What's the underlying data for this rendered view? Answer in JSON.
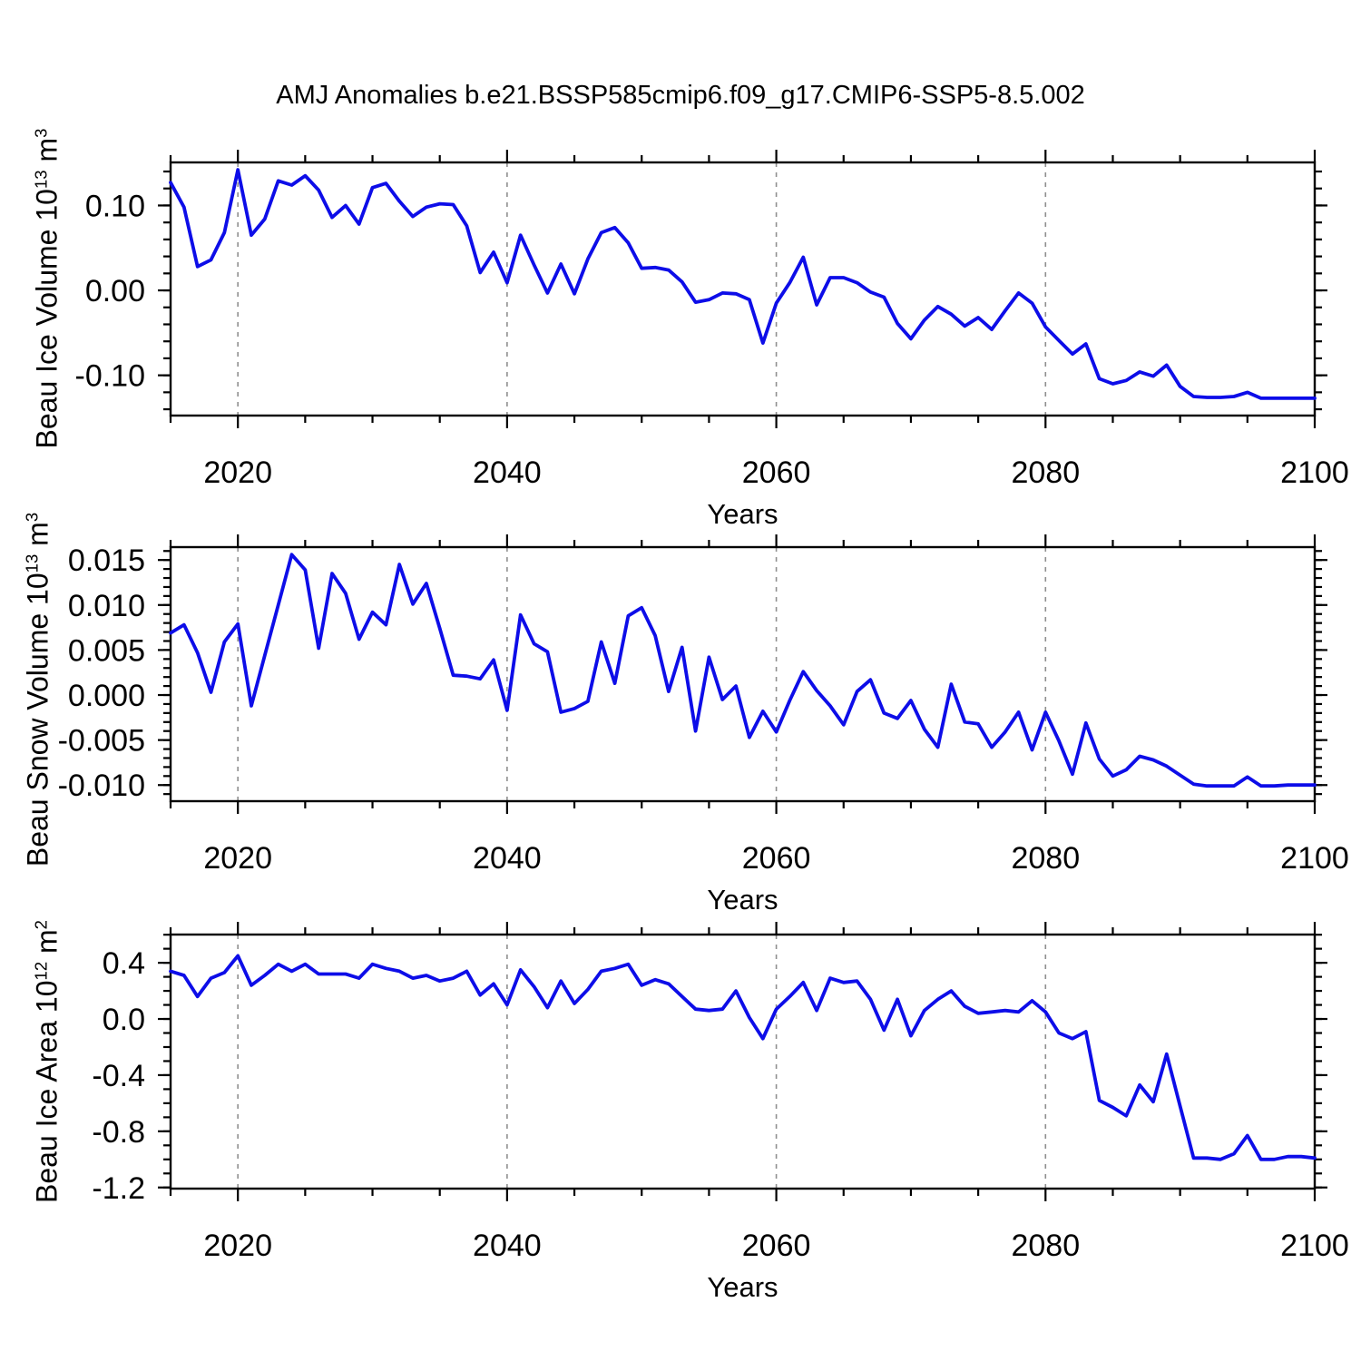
{
  "header": {
    "title": "AMJ Anomalies b.e21.BSSP585cmip6.f09_g17.CMIP6-SSP5-8.5.002"
  },
  "years": [
    2015,
    2016,
    2017,
    2018,
    2019,
    2020,
    2021,
    2022,
    2023,
    2024,
    2025,
    2026,
    2027,
    2028,
    2029,
    2030,
    2031,
    2032,
    2033,
    2034,
    2035,
    2036,
    2037,
    2038,
    2039,
    2040,
    2041,
    2042,
    2043,
    2044,
    2045,
    2046,
    2047,
    2048,
    2049,
    2050,
    2051,
    2052,
    2053,
    2054,
    2055,
    2056,
    2057,
    2058,
    2059,
    2060,
    2061,
    2062,
    2063,
    2064,
    2065,
    2066,
    2067,
    2068,
    2069,
    2070,
    2071,
    2072,
    2073,
    2074,
    2075,
    2076,
    2077,
    2078,
    2079,
    2080,
    2081,
    2082,
    2083,
    2084,
    2085,
    2086,
    2087,
    2088,
    2089,
    2090,
    2091,
    2092,
    2093,
    2094,
    2095,
    2096,
    2097,
    2098,
    2099,
    2100
  ],
  "colors": {
    "line": "#0D0DE8",
    "grid": "#8f8f8f",
    "axis": "#000000",
    "text": "#000000"
  },
  "chart_data": [
    {
      "type": "line",
      "name": "beau-ice-volume-anomaly",
      "ylabel": {
        "main": "Beau Ice Volume 10",
        "sup": "13",
        "unit": " m",
        "unit_sup": "3"
      },
      "xlabel": "Years",
      "values": [
        0.127,
        0.098,
        0.028,
        0.036,
        0.068,
        0.142,
        0.065,
        0.084,
        0.129,
        0.124,
        0.135,
        0.118,
        0.086,
        0.1,
        0.078,
        0.121,
        0.126,
        0.105,
        0.087,
        0.098,
        0.102,
        0.101,
        0.076,
        0.021,
        0.045,
        0.009,
        0.065,
        0.03,
        -0.003,
        0.031,
        -0.004,
        0.037,
        0.068,
        0.074,
        0.056,
        0.026,
        0.027,
        0.024,
        0.01,
        -0.014,
        -0.011,
        -0.003,
        -0.004,
        -0.011,
        -0.062,
        -0.015,
        0.009,
        0.039,
        -0.017,
        0.015,
        0.015,
        0.009,
        -0.002,
        -0.008,
        -0.039,
        -0.057,
        -0.035,
        -0.019,
        -0.028,
        -0.042,
        -0.032,
        -0.046,
        -0.024,
        -0.003,
        -0.015,
        -0.043,
        -0.059,
        -0.075,
        -0.063,
        -0.104,
        -0.11,
        -0.106,
        -0.096,
        -0.101,
        -0.088,
        -0.113,
        -0.125,
        -0.126,
        -0.126,
        -0.125,
        -0.12,
        -0.127,
        -0.127,
        -0.127,
        -0.127,
        -0.127
      ],
      "ylim": [
        -0.1474,
        0.1507
      ],
      "yticks": [
        {
          "v": 0.1,
          "label": "0.10"
        },
        {
          "v": 0.0,
          "label": "0.00"
        },
        {
          "v": -0.1,
          "label": "-0.10"
        }
      ],
      "ytick_minor_step": 0.02,
      "xlim": [
        2015,
        2100
      ],
      "xticks": [
        {
          "v": 2020,
          "label": "2020"
        },
        {
          "v": 2040,
          "label": "2040"
        },
        {
          "v": 2060,
          "label": "2060"
        },
        {
          "v": 2080,
          "label": "2080"
        },
        {
          "v": 2100,
          "label": "2100"
        }
      ],
      "xtick_minor_step": 5,
      "grid_years": [
        2020,
        2040,
        2060,
        2080
      ]
    },
    {
      "type": "line",
      "name": "beau-snow-volume-anomaly",
      "ylabel": {
        "main": "Beau Snow Volume 10",
        "sup": "13",
        "unit": " m",
        "unit_sup": "3"
      },
      "xlabel": "Years",
      "values": [
        0.0069,
        0.0078,
        0.0047,
        0.0003,
        0.0059,
        0.0079,
        -0.0012,
        0.0044,
        0.01,
        0.0156,
        0.0139,
        0.0052,
        0.0135,
        0.0113,
        0.0062,
        0.0092,
        0.0078,
        0.0145,
        0.0101,
        0.0124,
        0.0074,
        0.0022,
        0.0021,
        0.0018,
        0.0039,
        -0.0017,
        0.0089,
        0.0057,
        0.0048,
        -0.0019,
        -0.0015,
        -0.0007,
        0.0059,
        0.0013,
        0.0088,
        0.0097,
        0.0066,
        0.0004,
        0.0053,
        -0.004,
        0.0042,
        -0.0005,
        0.001,
        -0.0047,
        -0.0018,
        -0.0041,
        -0.0006,
        0.0026,
        0.0005,
        -0.0012,
        -0.0033,
        0.0004,
        0.0017,
        -0.002,
        -0.0026,
        -0.0006,
        -0.0038,
        -0.0058,
        0.0012,
        -0.003,
        -0.0032,
        -0.0058,
        -0.0041,
        -0.0019,
        -0.0061,
        -0.0019,
        -0.0051,
        -0.0088,
        -0.0031,
        -0.0071,
        -0.009,
        -0.0083,
        -0.0068,
        -0.0072,
        -0.0079,
        -0.0089,
        -0.0099,
        -0.0101,
        -0.0101,
        -0.0101,
        -0.0091,
        -0.0101,
        -0.0101,
        -0.01,
        -0.01,
        -0.01
      ],
      "ylim": [
        -0.01179,
        0.01643
      ],
      "yticks": [
        {
          "v": 0.015,
          "label": "0.015"
        },
        {
          "v": 0.01,
          "label": "0.010"
        },
        {
          "v": 0.005,
          "label": "0.005"
        },
        {
          "v": 0.0,
          "label": "0.000"
        },
        {
          "v": -0.005,
          "label": "-0.005"
        },
        {
          "v": -0.01,
          "label": "-0.010"
        }
      ],
      "ytick_minor_step": 0.001,
      "xlim": [
        2015,
        2100
      ],
      "xticks": [
        {
          "v": 2020,
          "label": "2020"
        },
        {
          "v": 2040,
          "label": "2040"
        },
        {
          "v": 2060,
          "label": "2060"
        },
        {
          "v": 2080,
          "label": "2080"
        },
        {
          "v": 2100,
          "label": "2100"
        }
      ],
      "xtick_minor_step": 5,
      "grid_years": [
        2020,
        2040,
        2060,
        2080
      ]
    },
    {
      "type": "line",
      "name": "beau-ice-area-anomaly",
      "ylabel": {
        "main": "Beau Ice Area 10",
        "sup": "12",
        "unit": " m",
        "unit_sup": "2"
      },
      "xlabel": "Years",
      "values": [
        0.34,
        0.31,
        0.16,
        0.29,
        0.33,
        0.45,
        0.24,
        0.31,
        0.39,
        0.34,
        0.39,
        0.32,
        0.32,
        0.32,
        0.29,
        0.39,
        0.36,
        0.34,
        0.29,
        0.31,
        0.27,
        0.29,
        0.34,
        0.17,
        0.25,
        0.1,
        0.35,
        0.23,
        0.08,
        0.27,
        0.11,
        0.21,
        0.34,
        0.36,
        0.39,
        0.24,
        0.28,
        0.25,
        0.16,
        0.07,
        0.06,
        0.07,
        0.2,
        0.01,
        -0.14,
        0.07,
        0.16,
        0.26,
        0.06,
        0.29,
        0.26,
        0.27,
        0.14,
        -0.08,
        0.14,
        -0.12,
        0.06,
        0.14,
        0.2,
        0.09,
        0.04,
        0.05,
        0.06,
        0.05,
        0.13,
        0.05,
        -0.1,
        -0.14,
        -0.09,
        -0.58,
        -0.63,
        -0.69,
        -0.47,
        -0.59,
        -0.25,
        -0.62,
        -0.99,
        -0.99,
        -1.0,
        -0.96,
        -0.83,
        -1.0,
        -1.0,
        -0.98,
        -0.98,
        -0.99
      ],
      "ylim": [
        -1.208,
        0.601
      ],
      "yticks": [
        {
          "v": 0.4,
          "label": "0.4"
        },
        {
          "v": 0.0,
          "label": "0.0"
        },
        {
          "v": -0.4,
          "label": "-0.4"
        },
        {
          "v": -0.8,
          "label": "-0.8"
        },
        {
          "v": -1.2,
          "label": "-1.2"
        }
      ],
      "ytick_minor_step": 0.1,
      "xlim": [
        2015,
        2100
      ],
      "xticks": [
        {
          "v": 2020,
          "label": "2020"
        },
        {
          "v": 2040,
          "label": "2040"
        },
        {
          "v": 2060,
          "label": "2060"
        },
        {
          "v": 2080,
          "label": "2080"
        },
        {
          "v": 2100,
          "label": "2100"
        }
      ],
      "xtick_minor_step": 5,
      "grid_years": [
        2020,
        2040,
        2060,
        2080
      ]
    }
  ]
}
